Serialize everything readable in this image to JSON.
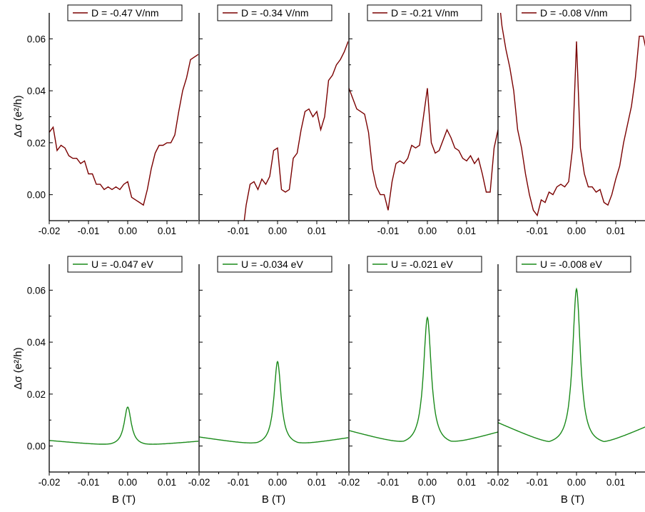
{
  "figure": {
    "top_row_ylabel": "Δσ (e²/h)",
    "bottom_row_ylabel": "Δσ (e²/h)",
    "bottom_xlabel": "B (T)"
  },
  "colors": {
    "measured": "#7a0000",
    "model": "#1a8a1a"
  },
  "chart_data": [
    {
      "type": "line",
      "row": "top",
      "legend": "D = -0.47 V/nm",
      "xlabel": "",
      "ylabel": "Δσ (e²/h)",
      "xlim": [
        -0.02,
        0.018
      ],
      "ylim": [
        -0.01,
        0.07
      ],
      "xticks": [
        -0.02,
        -0.01,
        0.0,
        0.01
      ],
      "yticks": [
        0.0,
        0.02,
        0.04,
        0.06
      ],
      "x": [
        -0.02,
        -0.019,
        -0.018,
        -0.017,
        -0.016,
        -0.015,
        -0.014,
        -0.013,
        -0.012,
        -0.011,
        -0.01,
        -0.009,
        -0.008,
        -0.007,
        -0.006,
        -0.005,
        -0.004,
        -0.003,
        -0.002,
        -0.001,
        0.0,
        0.001,
        0.002,
        0.003,
        0.004,
        0.005,
        0.006,
        0.007,
        0.008,
        0.009,
        0.01,
        0.011,
        0.012,
        0.013,
        0.014,
        0.015,
        0.016,
        0.017,
        0.018
      ],
      "y": [
        0.024,
        0.026,
        0.017,
        0.019,
        0.018,
        0.015,
        0.014,
        0.014,
        0.012,
        0.013,
        0.008,
        0.008,
        0.004,
        0.004,
        0.002,
        0.003,
        0.002,
        0.003,
        0.002,
        0.004,
        0.005,
        -0.001,
        -0.002,
        -0.003,
        -0.004,
        0.002,
        0.01,
        0.016,
        0.019,
        0.019,
        0.02,
        0.02,
        0.023,
        0.032,
        0.04,
        0.045,
        0.052,
        0.053,
        0.054
      ]
    },
    {
      "type": "line",
      "row": "top",
      "legend": "D = -0.34 V/nm",
      "xlabel": "",
      "ylabel": "",
      "xlim": [
        -0.02,
        0.018
      ],
      "ylim": [
        -0.01,
        0.07
      ],
      "xticks": [
        -0.01,
        0.0,
        0.01
      ],
      "yticks": [],
      "x": [
        -0.0085,
        -0.008,
        -0.007,
        -0.006,
        -0.005,
        -0.004,
        -0.003,
        -0.002,
        -0.001,
        0.0,
        0.001,
        0.002,
        0.003,
        0.004,
        0.005,
        0.006,
        0.007,
        0.008,
        0.009,
        0.01,
        0.011,
        0.012,
        0.013,
        0.014,
        0.015,
        0.016,
        0.017,
        0.018
      ],
      "y": [
        -0.01,
        -0.004,
        0.004,
        0.005,
        0.002,
        0.006,
        0.004,
        0.007,
        0.017,
        0.018,
        0.002,
        0.001,
        0.002,
        0.014,
        0.016,
        0.025,
        0.032,
        0.033,
        0.03,
        0.032,
        0.025,
        0.03,
        0.044,
        0.046,
        0.05,
        0.052,
        0.055,
        0.059
      ]
    },
    {
      "type": "line",
      "row": "top",
      "legend": "D = -0.21 V/nm",
      "xlabel": "",
      "ylabel": "",
      "xlim": [
        -0.02,
        0.018
      ],
      "ylim": [
        -0.01,
        0.07
      ],
      "xticks": [
        -0.01,
        0.0,
        0.01
      ],
      "yticks": [],
      "x": [
        -0.02,
        -0.019,
        -0.018,
        -0.017,
        -0.016,
        -0.015,
        -0.014,
        -0.013,
        -0.012,
        -0.011,
        -0.01,
        -0.009,
        -0.008,
        -0.007,
        -0.006,
        -0.005,
        -0.004,
        -0.003,
        -0.002,
        -0.001,
        0.0,
        0.001,
        0.002,
        0.003,
        0.004,
        0.005,
        0.006,
        0.007,
        0.008,
        0.009,
        0.01,
        0.011,
        0.012,
        0.013,
        0.014,
        0.015,
        0.016,
        0.017,
        0.018
      ],
      "y": [
        0.041,
        0.037,
        0.033,
        0.032,
        0.031,
        0.024,
        0.01,
        0.003,
        0.0,
        0.0,
        -0.006,
        0.005,
        0.012,
        0.013,
        0.012,
        0.014,
        0.019,
        0.018,
        0.019,
        0.03,
        0.041,
        0.02,
        0.016,
        0.017,
        0.021,
        0.025,
        0.022,
        0.018,
        0.017,
        0.014,
        0.013,
        0.015,
        0.012,
        0.014,
        0.008,
        0.001,
        0.001,
        0.018,
        0.025
      ]
    },
    {
      "type": "line",
      "row": "top",
      "legend": "D = -0.08 V/nm",
      "xlabel": "",
      "ylabel": "",
      "xlim": [
        -0.02,
        0.018
      ],
      "ylim": [
        -0.01,
        0.07
      ],
      "xticks": [
        -0.01,
        0.0,
        0.01
      ],
      "yticks": [],
      "x": [
        -0.0195,
        -0.019,
        -0.018,
        -0.017,
        -0.016,
        -0.015,
        -0.014,
        -0.013,
        -0.012,
        -0.011,
        -0.01,
        -0.009,
        -0.008,
        -0.007,
        -0.006,
        -0.005,
        -0.004,
        -0.003,
        -0.002,
        -0.001,
        0.0,
        0.001,
        0.002,
        0.003,
        0.004,
        0.005,
        0.006,
        0.007,
        0.008,
        0.009,
        0.01,
        0.011,
        0.012,
        0.013,
        0.014,
        0.015,
        0.016,
        0.017,
        0.018
      ],
      "y": [
        0.072,
        0.065,
        0.056,
        0.049,
        0.04,
        0.025,
        0.018,
        0.008,
        0.0,
        -0.006,
        -0.008,
        -0.002,
        -0.003,
        0.001,
        0.0,
        0.003,
        0.004,
        0.003,
        0.005,
        0.018,
        0.059,
        0.018,
        0.008,
        0.003,
        0.003,
        0.001,
        0.002,
        -0.003,
        -0.004,
        0.0,
        0.006,
        0.011,
        0.02,
        0.027,
        0.034,
        0.045,
        0.061,
        0.061,
        0.054
      ]
    },
    {
      "type": "line",
      "row": "bottom",
      "legend": "U = -0.047 eV",
      "xlabel": "B (T)",
      "ylabel": "Δσ (e²/h)",
      "xlim": [
        -0.02,
        0.018
      ],
      "ylim": [
        -0.01,
        0.07
      ],
      "xticks": [
        -0.02,
        -0.01,
        0.0,
        0.01
      ],
      "yticks": [
        0.0,
        0.02,
        0.04,
        0.06
      ],
      "peak": 0.015,
      "edge_left": 0.0021,
      "edge_right": 0.0018,
      "min_x": 0.0043,
      "width": 0.0011
    },
    {
      "type": "line",
      "row": "bottom",
      "legend": "U = -0.034 eV",
      "xlabel": "B (T)",
      "ylabel": "",
      "xlim": [
        -0.02,
        0.018
      ],
      "ylim": [
        -0.01,
        0.07
      ],
      "xticks": [
        -0.02,
        -0.01,
        0.0,
        0.01
      ],
      "yticks": [],
      "peak": 0.0325,
      "edge_left": 0.0034,
      "edge_right": 0.0031,
      "min_x": 0.0052,
      "width": 0.0011
    },
    {
      "type": "line",
      "row": "bottom",
      "legend": "U = -0.021 eV",
      "xlabel": "B (T)",
      "ylabel": "",
      "xlim": [
        -0.02,
        0.018
      ],
      "ylim": [
        -0.01,
        0.07
      ],
      "xticks": [
        -0.02,
        -0.01,
        0.0,
        0.01
      ],
      "yticks": [],
      "peak": 0.0495,
      "edge_left": 0.0058,
      "edge_right": 0.0052,
      "min_x": 0.006,
      "width": 0.0012
    },
    {
      "type": "line",
      "row": "bottom",
      "legend": "U = -0.008 eV",
      "xlabel": "B (T)",
      "ylabel": "",
      "xlim": [
        -0.02,
        0.018
      ],
      "ylim": [
        -0.01,
        0.07
      ],
      "xticks": [
        -0.02,
        -0.01,
        0.0,
        0.01
      ],
      "yticks": [],
      "peak": 0.0605,
      "edge_left": 0.0088,
      "edge_right": 0.0074,
      "min_x": 0.007,
      "width": 0.0012
    }
  ]
}
